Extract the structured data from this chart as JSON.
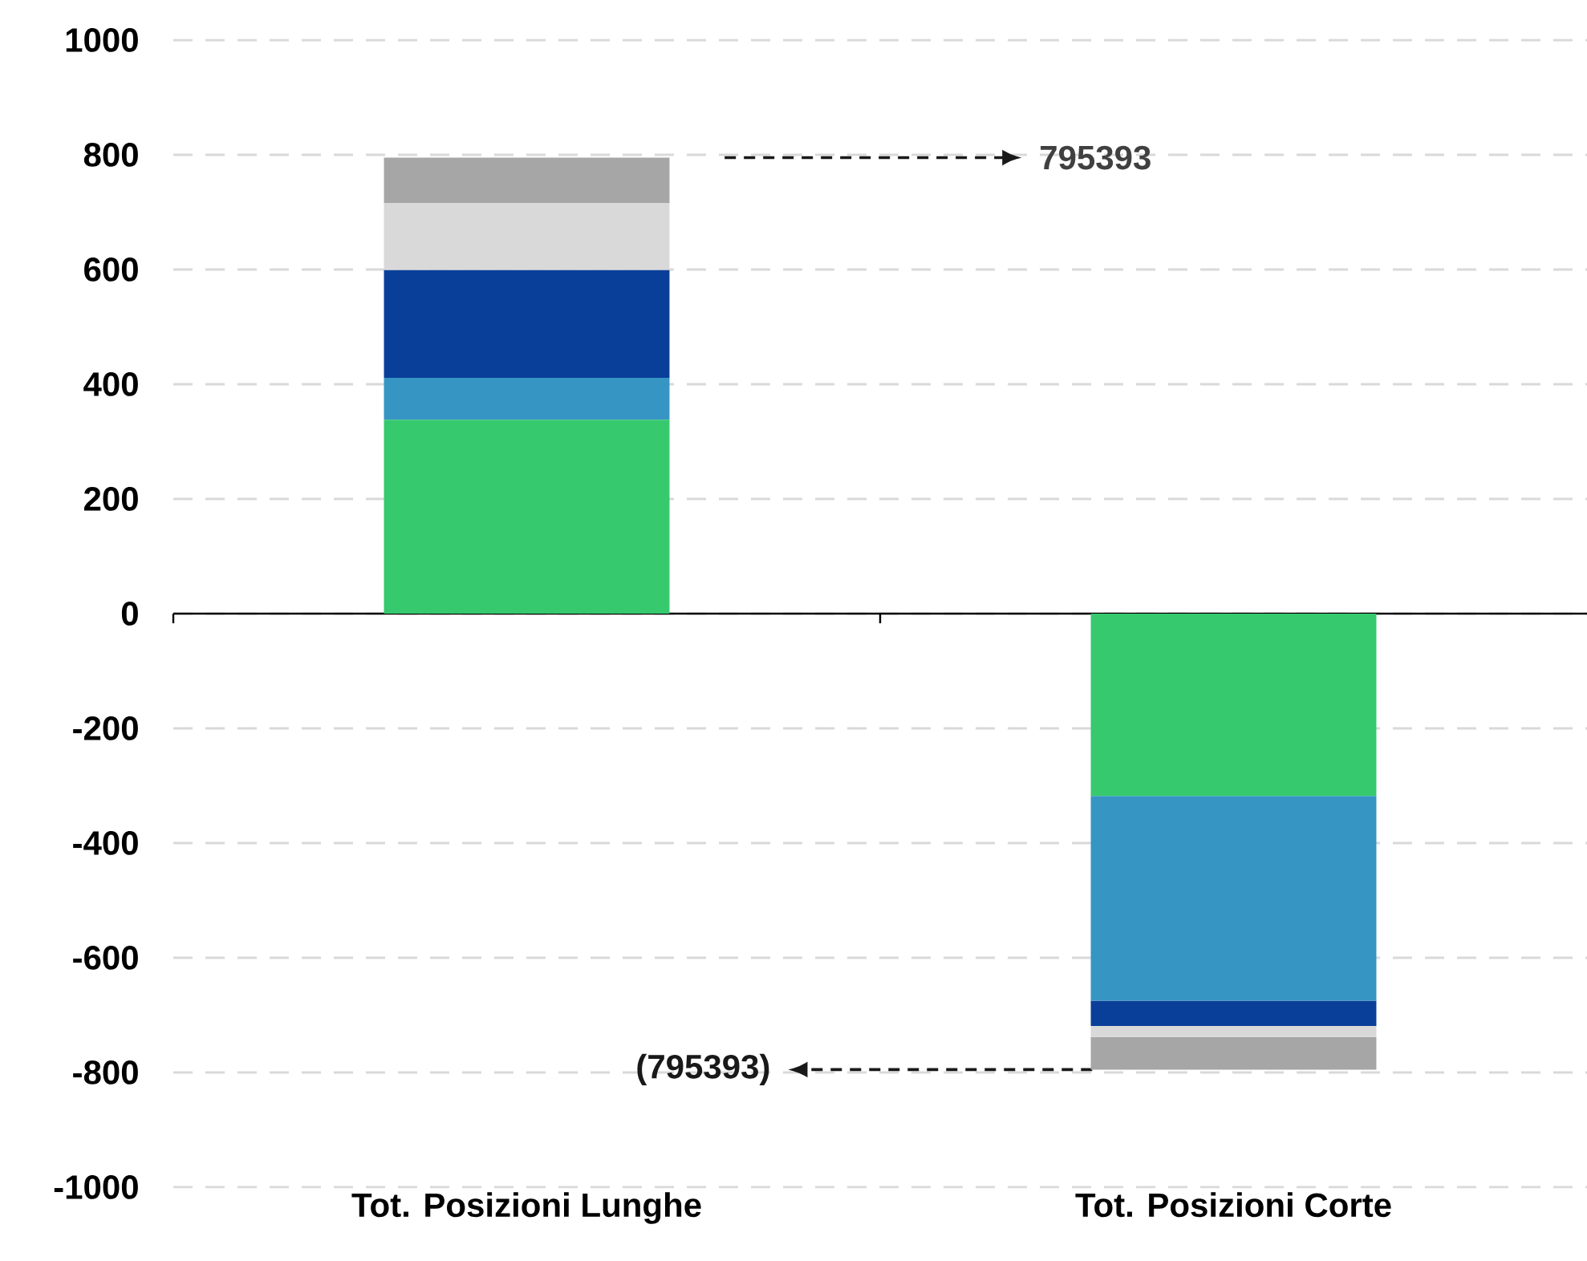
{
  "chart_data": {
    "type": "bar",
    "stacked": true,
    "grid": "y",
    "categories": [
      "Tot. Posizioni Lunghe",
      "Tot. Posizioni Corte"
    ],
    "series": [
      {
        "color": "#36c96e",
        "values": [
          338,
          -318
        ]
      },
      {
        "color": "#3795c4",
        "values": [
          73,
          -357
        ]
      },
      {
        "color": "#0a3f99",
        "values": [
          188,
          -44
        ]
      },
      {
        "color": "#d9d9d9",
        "values": [
          117,
          -19
        ]
      },
      {
        "color": "#a6a6a6",
        "values": [
          79,
          -57
        ]
      }
    ],
    "ylim": [
      -1000,
      1000
    ],
    "yticks": [
      -1000,
      -800,
      -600,
      -400,
      -200,
      0,
      200,
      400,
      600,
      800,
      1000
    ],
    "annotations": [
      "795393",
      "(795393)"
    ]
  }
}
